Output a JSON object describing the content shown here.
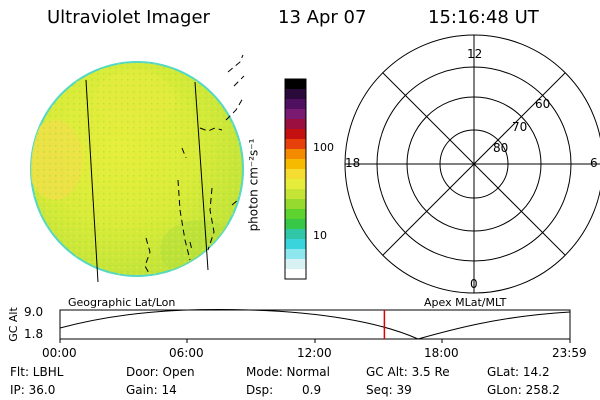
{
  "header": {
    "instrument": "Ultraviolet Imager",
    "date": "13 Apr 07",
    "time": "15:16:48 UT"
  },
  "image_panel": {
    "description_colors": {
      "disk_fill": "#d7ef3a",
      "disk_edge": "#4fd6c4",
      "bright_patch": "#eee24a"
    }
  },
  "colorbar": {
    "unit_label": "photon cm⁻²s⁻¹",
    "tick_labels": [
      "100",
      "10"
    ],
    "colors_top_to_bottom": [
      "#000000",
      "#2a0a3a",
      "#501060",
      "#7a1a70",
      "#9a0f40",
      "#c41010",
      "#e8400a",
      "#f48a00",
      "#f6ba00",
      "#f4dc30",
      "#e6ec3a",
      "#c6e436",
      "#96da30",
      "#5ed22e",
      "#38c848",
      "#30c6a6",
      "#3ad4dc",
      "#8ee6ee",
      "#d8f2f4",
      "#ffffff"
    ]
  },
  "polar_plot": {
    "mlt_labels": {
      "top": "12",
      "left": "18",
      "right": "6",
      "bottom": "0"
    },
    "mlat_labels": [
      "60",
      "70",
      "80"
    ]
  },
  "orbit_plot": {
    "left_caption": "Geographic Lat/Lon",
    "right_caption": "Apex MLat/MLT",
    "y_axis_title": "GC Alt",
    "y_tick_labels": [
      "9.0",
      "1.8"
    ],
    "x_tick_labels": [
      "00:00",
      "06:00",
      "12:00",
      "18:00",
      "23:59"
    ],
    "marker_color": "#e00000",
    "marker_time_fraction": 0.636,
    "minimum_time_fraction": 0.705
  },
  "info": {
    "row1": {
      "flt": "Flt: LBHL",
      "door": "Door: Open",
      "mode": "Mode: Normal",
      "gc_alt": "GC Alt: 3.5 Re",
      "glat": "GLat:  14.2"
    },
    "row2": {
      "ip": "IP: 36.0",
      "gain": "Gain: 14",
      "dsp_label": "Dsp:",
      "dsp_value": "0.9",
      "seq": "Seq: 39",
      "glon": "GLon: 258.2"
    }
  }
}
